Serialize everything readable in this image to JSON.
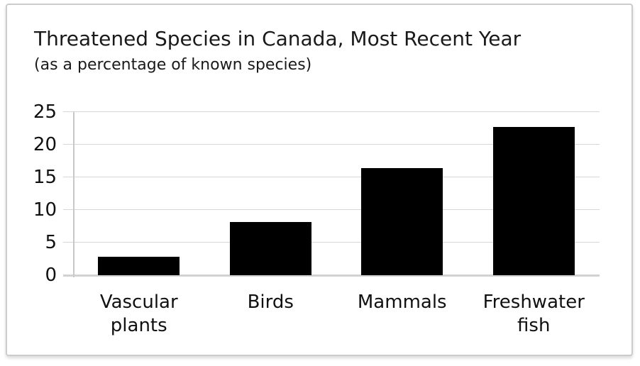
{
  "chart_data": {
    "type": "bar",
    "title": "Threatened Species in Canada, Most Recent Year",
    "subtitle": "(as a percentage of known species)",
    "categories": [
      "Vascular plants",
      "Birds",
      "Mammals",
      "Freshwater fish"
    ],
    "category_lines": [
      [
        "Vascular",
        "plants"
      ],
      [
        "Birds"
      ],
      [
        "Mammals"
      ],
      [
        "Freshwater",
        "fish"
      ]
    ],
    "values": [
      2.8,
      8.2,
      16.4,
      22.7
    ],
    "xlabel": "",
    "ylabel": "",
    "ylim": [
      0,
      25
    ],
    "yticks": [
      0,
      5,
      10,
      15,
      20,
      25
    ],
    "grid": true,
    "legend": "none",
    "bar_color": "#000000",
    "gridline_color": "#d7d7d7",
    "axis_line_color": "#c9c9c9",
    "text_color": "#111111",
    "frame_border_color": "#cccccc",
    "background_color": "#ffffff"
  }
}
